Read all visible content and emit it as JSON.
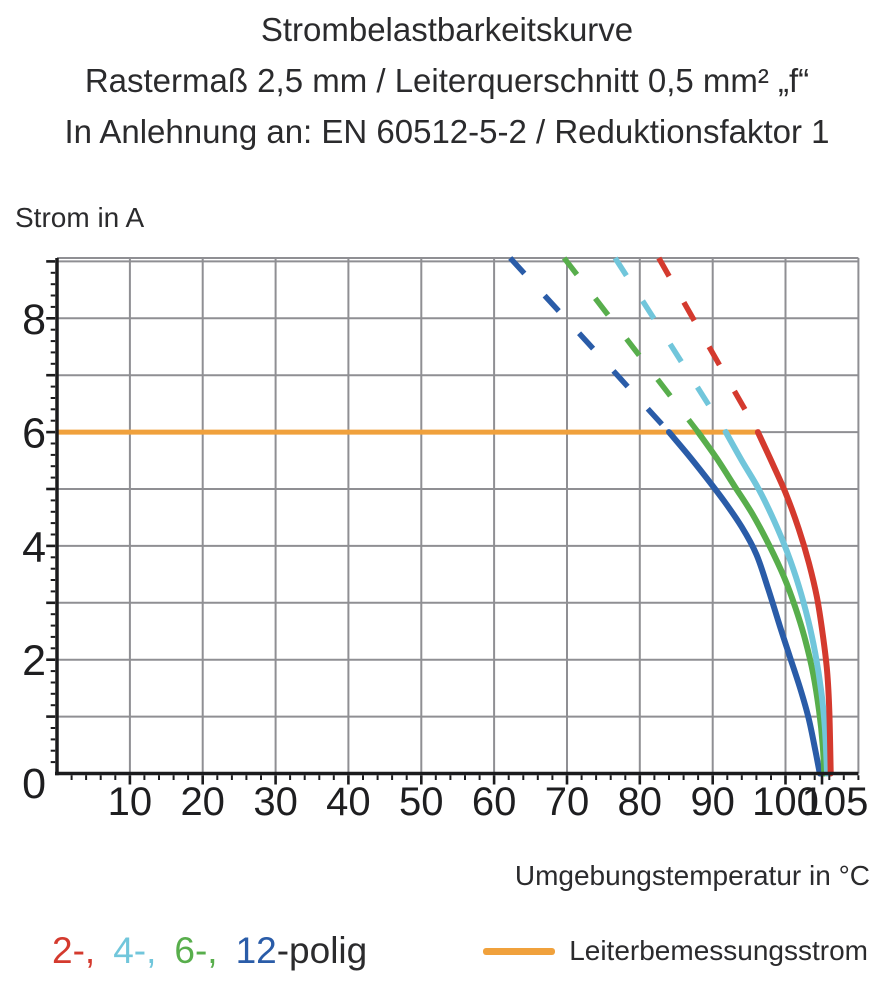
{
  "title": {
    "line1": "Strombelastbarkeitskurve",
    "line2": "Rastermaß 2,5 mm / Leiterquerschnitt 0,5 mm² „f“",
    "line3": "In Anlehnung an: EN 60512-5-2 / Reduktionsfaktor 1"
  },
  "axes": {
    "y_title": "Strom in A",
    "x_title": "Umgebungstemperatur in °C"
  },
  "legend": {
    "poles": [
      {
        "label": "2-,",
        "color": "#d43a2e"
      },
      {
        "label": "4-,",
        "color": "#71c6db"
      },
      {
        "label": "6-,",
        "color": "#58ae4c"
      },
      {
        "label": "12",
        "color": "#2a5ca8"
      }
    ],
    "suffix": "-polig",
    "rated": {
      "swatch_color": "#f0a13c",
      "label": "Leiterbemessungsstrom"
    }
  },
  "chart_data": {
    "type": "line",
    "title": "Strombelastbarkeitskurve",
    "xlabel": "Umgebungstemperatur in °C",
    "ylabel": "Strom in A",
    "xlim": [
      0,
      110
    ],
    "ylim": [
      0,
      9.06
    ],
    "grid": true,
    "grid_color": "#8f8f93",
    "axis_color": "#1b1b1d",
    "tick_label_color": "#1e1e20",
    "x_gridline_step": 10,
    "y_gridline_step": 1,
    "x_minor_tick_step": 2,
    "y_minor_tick_step": 0.2,
    "x_ticks": [
      {
        "value": 10,
        "label": "10"
      },
      {
        "value": 20,
        "label": "20"
      },
      {
        "value": 30,
        "label": "30"
      },
      {
        "value": 40,
        "label": "40"
      },
      {
        "value": 50,
        "label": "50"
      },
      {
        "value": 60,
        "label": "60"
      },
      {
        "value": 70,
        "label": "70"
      },
      {
        "value": 80,
        "label": "80"
      },
      {
        "value": 90,
        "label": "90"
      },
      {
        "value": 100,
        "label": "100"
      },
      {
        "value": 105,
        "label": "105"
      }
    ],
    "y_ticks": [
      {
        "value": 0,
        "label": "0"
      },
      {
        "value": 2,
        "label": "2"
      },
      {
        "value": 4,
        "label": "4"
      },
      {
        "value": 6,
        "label": "6"
      },
      {
        "value": 8,
        "label": "8"
      }
    ],
    "rated_current_line": {
      "label": "Leiterbemessungsstrom",
      "y": 6,
      "x_start": 0,
      "x_end": 96.5,
      "color": "#f0a13c"
    },
    "series": [
      {
        "name": "12-polig",
        "color": "#2a5ca8",
        "dashed_points": [
          [
            62.2,
            9.06
          ],
          [
            73,
            7.55
          ],
          [
            84,
            6.0
          ]
        ],
        "solid_points": [
          [
            84,
            6.0
          ],
          [
            86.5,
            5.62
          ],
          [
            89,
            5.22
          ],
          [
            91.5,
            4.8
          ],
          [
            94,
            4.33
          ],
          [
            96,
            3.85
          ],
          [
            97.6,
            3.25
          ],
          [
            99.2,
            2.6
          ],
          [
            100.6,
            2.05
          ],
          [
            102,
            1.5
          ],
          [
            103.2,
            0.95
          ],
          [
            104.1,
            0.4
          ],
          [
            104.7,
            0
          ]
        ]
      },
      {
        "name": "6-polig",
        "color": "#58ae4c",
        "dashed_points": [
          [
            69.6,
            9.06
          ],
          [
            79,
            7.5
          ],
          [
            88,
            6.0
          ]
        ],
        "solid_points": [
          [
            88,
            6.0
          ],
          [
            90.5,
            5.55
          ],
          [
            93,
            5.05
          ],
          [
            95.5,
            4.55
          ],
          [
            97.8,
            4.0
          ],
          [
            99.8,
            3.45
          ],
          [
            101.4,
            2.9
          ],
          [
            102.7,
            2.35
          ],
          [
            103.8,
            1.75
          ],
          [
            104.6,
            1.1
          ],
          [
            105.1,
            0.5
          ],
          [
            105.3,
            0
          ]
        ]
      },
      {
        "name": "4-polig",
        "color": "#71c6db",
        "dashed_points": [
          [
            76.6,
            9.06
          ],
          [
            84.4,
            7.5
          ],
          [
            91.8,
            6.0
          ]
        ],
        "solid_points": [
          [
            91.8,
            6.0
          ],
          [
            94,
            5.5
          ],
          [
            96.3,
            5.0
          ],
          [
            98.4,
            4.45
          ],
          [
            100.2,
            3.9
          ],
          [
            101.8,
            3.3
          ],
          [
            103.1,
            2.7
          ],
          [
            104.1,
            2.1
          ],
          [
            104.9,
            1.45
          ],
          [
            105.4,
            0.8
          ],
          [
            105.7,
            0
          ]
        ]
      },
      {
        "name": "2-polig",
        "color": "#d43a2e",
        "dashed_points": [
          [
            82.6,
            9.06
          ],
          [
            89.5,
            7.5
          ],
          [
            96.2,
            6.0
          ]
        ],
        "solid_points": [
          [
            96.2,
            6.0
          ],
          [
            98.2,
            5.45
          ],
          [
            100.1,
            4.9
          ],
          [
            101.8,
            4.3
          ],
          [
            103.2,
            3.7
          ],
          [
            104.3,
            3.1
          ],
          [
            105.1,
            2.45
          ],
          [
            105.7,
            1.8
          ],
          [
            106,
            1.1
          ],
          [
            106.2,
            0
          ]
        ]
      }
    ]
  }
}
